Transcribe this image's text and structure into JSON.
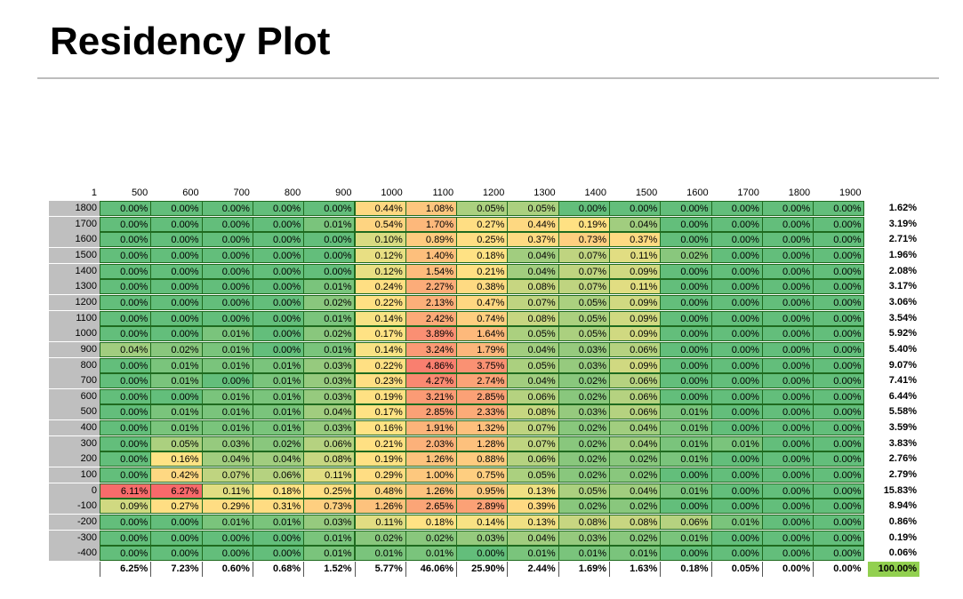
{
  "page": {
    "title": "Residency Plot"
  },
  "chart_data": {
    "type": "heatmap",
    "title": "Residency Plot",
    "corner_label": "1",
    "columns": [
      "500",
      "600",
      "700",
      "800",
      "900",
      "1000",
      "1100",
      "1200",
      "1300",
      "1400",
      "1500",
      "1600",
      "1700",
      "1800",
      "1900"
    ],
    "rows": [
      "1800",
      "1700",
      "1600",
      "1500",
      "1400",
      "1300",
      "1200",
      "1100",
      "1000",
      "900",
      "800",
      "700",
      "600",
      "500",
      "400",
      "300",
      "200",
      "100",
      "0",
      "-100",
      "-200",
      "-300",
      "-400"
    ],
    "values": [
      [
        "0.00%",
        "0.00%",
        "0.00%",
        "0.00%",
        "0.00%",
        "0.44%",
        "1.08%",
        "0.05%",
        "0.05%",
        "0.00%",
        "0.00%",
        "0.00%",
        "0.00%",
        "0.00%",
        "0.00%"
      ],
      [
        "0.00%",
        "0.00%",
        "0.00%",
        "0.00%",
        "0.01%",
        "0.54%",
        "1.70%",
        "0.27%",
        "0.44%",
        "0.19%",
        "0.04%",
        "0.00%",
        "0.00%",
        "0.00%",
        "0.00%"
      ],
      [
        "0.00%",
        "0.00%",
        "0.00%",
        "0.00%",
        "0.00%",
        "0.10%",
        "0.89%",
        "0.25%",
        "0.37%",
        "0.73%",
        "0.37%",
        "0.00%",
        "0.00%",
        "0.00%",
        "0.00%"
      ],
      [
        "0.00%",
        "0.00%",
        "0.00%",
        "0.00%",
        "0.00%",
        "0.12%",
        "1.40%",
        "0.18%",
        "0.04%",
        "0.07%",
        "0.11%",
        "0.02%",
        "0.00%",
        "0.00%",
        "0.00%"
      ],
      [
        "0.00%",
        "0.00%",
        "0.00%",
        "0.00%",
        "0.00%",
        "0.12%",
        "1.54%",
        "0.21%",
        "0.04%",
        "0.07%",
        "0.09%",
        "0.00%",
        "0.00%",
        "0.00%",
        "0.00%"
      ],
      [
        "0.00%",
        "0.00%",
        "0.00%",
        "0.00%",
        "0.01%",
        "0.24%",
        "2.27%",
        "0.38%",
        "0.08%",
        "0.07%",
        "0.11%",
        "0.00%",
        "0.00%",
        "0.00%",
        "0.00%"
      ],
      [
        "0.00%",
        "0.00%",
        "0.00%",
        "0.00%",
        "0.02%",
        "0.22%",
        "2.13%",
        "0.47%",
        "0.07%",
        "0.05%",
        "0.09%",
        "0.00%",
        "0.00%",
        "0.00%",
        "0.00%"
      ],
      [
        "0.00%",
        "0.00%",
        "0.00%",
        "0.00%",
        "0.01%",
        "0.14%",
        "2.42%",
        "0.74%",
        "0.08%",
        "0.05%",
        "0.09%",
        "0.00%",
        "0.00%",
        "0.00%",
        "0.00%"
      ],
      [
        "0.00%",
        "0.00%",
        "0.01%",
        "0.00%",
        "0.02%",
        "0.17%",
        "3.89%",
        "1.64%",
        "0.05%",
        "0.05%",
        "0.09%",
        "0.00%",
        "0.00%",
        "0.00%",
        "0.00%"
      ],
      [
        "0.04%",
        "0.02%",
        "0.01%",
        "0.00%",
        "0.01%",
        "0.14%",
        "3.24%",
        "1.79%",
        "0.04%",
        "0.03%",
        "0.06%",
        "0.00%",
        "0.00%",
        "0.00%",
        "0.00%"
      ],
      [
        "0.00%",
        "0.01%",
        "0.01%",
        "0.01%",
        "0.03%",
        "0.22%",
        "4.86%",
        "3.75%",
        "0.05%",
        "0.03%",
        "0.09%",
        "0.00%",
        "0.00%",
        "0.00%",
        "0.00%"
      ],
      [
        "0.00%",
        "0.01%",
        "0.00%",
        "0.01%",
        "0.03%",
        "0.23%",
        "4.27%",
        "2.74%",
        "0.04%",
        "0.02%",
        "0.06%",
        "0.00%",
        "0.00%",
        "0.00%",
        "0.00%"
      ],
      [
        "0.00%",
        "0.00%",
        "0.01%",
        "0.01%",
        "0.03%",
        "0.19%",
        "3.21%",
        "2.85%",
        "0.06%",
        "0.02%",
        "0.06%",
        "0.00%",
        "0.00%",
        "0.00%",
        "0.00%"
      ],
      [
        "0.00%",
        "0.01%",
        "0.01%",
        "0.01%",
        "0.04%",
        "0.17%",
        "2.85%",
        "2.33%",
        "0.08%",
        "0.03%",
        "0.06%",
        "0.01%",
        "0.00%",
        "0.00%",
        "0.00%"
      ],
      [
        "0.00%",
        "0.01%",
        "0.01%",
        "0.01%",
        "0.03%",
        "0.16%",
        "1.91%",
        "1.32%",
        "0.07%",
        "0.02%",
        "0.04%",
        "0.01%",
        "0.00%",
        "0.00%",
        "0.00%"
      ],
      [
        "0.00%",
        "0.05%",
        "0.03%",
        "0.02%",
        "0.06%",
        "0.21%",
        "2.03%",
        "1.28%",
        "0.07%",
        "0.02%",
        "0.04%",
        "0.01%",
        "0.01%",
        "0.00%",
        "0.00%"
      ],
      [
        "0.00%",
        "0.16%",
        "0.04%",
        "0.04%",
        "0.08%",
        "0.19%",
        "1.26%",
        "0.88%",
        "0.06%",
        "0.02%",
        "0.02%",
        "0.01%",
        "0.00%",
        "0.00%",
        "0.00%"
      ],
      [
        "0.00%",
        "0.42%",
        "0.07%",
        "0.06%",
        "0.11%",
        "0.29%",
        "1.00%",
        "0.75%",
        "0.05%",
        "0.02%",
        "0.02%",
        "0.00%",
        "0.00%",
        "0.00%",
        "0.00%"
      ],
      [
        "6.11%",
        "6.27%",
        "0.11%",
        "0.18%",
        "0.25%",
        "0.48%",
        "1.26%",
        "0.95%",
        "0.13%",
        "0.05%",
        "0.04%",
        "0.01%",
        "0.00%",
        "0.00%",
        "0.00%"
      ],
      [
        "0.09%",
        "0.27%",
        "0.29%",
        "0.31%",
        "0.73%",
        "1.26%",
        "2.65%",
        "2.89%",
        "0.39%",
        "0.02%",
        "0.02%",
        "0.00%",
        "0.00%",
        "0.00%",
        "0.00%"
      ],
      [
        "0.00%",
        "0.00%",
        "0.01%",
        "0.01%",
        "0.03%",
        "0.11%",
        "0.18%",
        "0.14%",
        "0.13%",
        "0.08%",
        "0.08%",
        "0.06%",
        "0.01%",
        "0.00%",
        "0.00%"
      ],
      [
        "0.00%",
        "0.00%",
        "0.00%",
        "0.00%",
        "0.01%",
        "0.02%",
        "0.02%",
        "0.03%",
        "0.04%",
        "0.03%",
        "0.02%",
        "0.01%",
        "0.00%",
        "0.00%",
        "0.00%"
      ],
      [
        "0.00%",
        "0.00%",
        "0.00%",
        "0.00%",
        "0.01%",
        "0.01%",
        "0.01%",
        "0.00%",
        "0.01%",
        "0.01%",
        "0.01%",
        "0.00%",
        "0.00%",
        "0.00%",
        "0.00%"
      ]
    ],
    "row_totals": [
      "1.62%",
      "3.19%",
      "2.71%",
      "1.96%",
      "2.08%",
      "3.17%",
      "3.06%",
      "3.54%",
      "5.92%",
      "5.40%",
      "9.07%",
      "7.41%",
      "6.44%",
      "5.58%",
      "3.59%",
      "3.83%",
      "2.76%",
      "2.79%",
      "15.83%",
      "8.94%",
      "0.86%",
      "0.19%",
      "0.06%"
    ],
    "column_totals": [
      "6.25%",
      "7.23%",
      "0.60%",
      "0.68%",
      "1.52%",
      "5.77%",
      "46.06%",
      "25.90%",
      "2.44%",
      "1.69%",
      "1.63%",
      "0.18%",
      "0.05%",
      "0.00%",
      "0.00%"
    ],
    "grand_total": "100.00%",
    "colors": {
      "low": "#63be7b",
      "mid": "#ffe484",
      "high": "#f8696b",
      "row_header_bg": "#bfbfbf",
      "grand_total_bg": "#92d050"
    }
  }
}
